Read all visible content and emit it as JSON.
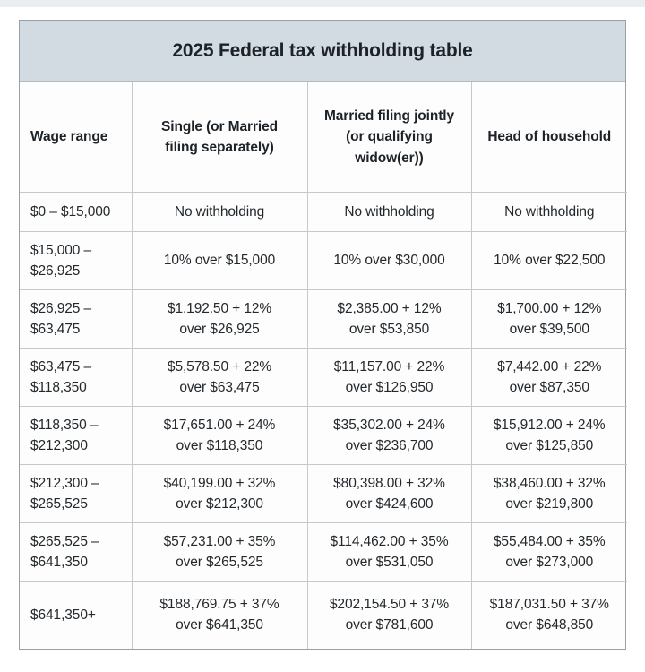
{
  "page": {
    "top_strip_color": "#e9eef2",
    "background_color": "#ffffff"
  },
  "table": {
    "title": "2025 Federal tax withholding table",
    "title_background": "#d2dbe2",
    "border_color": "#c3c9cc",
    "columns": [
      "Wage range",
      "Single (or Married\nfiling separately)",
      "Married filing jointly\n(or qualifying\nwidow(er))",
      "Head of household"
    ],
    "rows": [
      [
        "$0 – $15,000",
        "No withholding",
        "No withholding",
        "No withholding"
      ],
      [
        "$15,000 –\n$26,925",
        "10% over $15,000",
        "10% over $30,000",
        "10% over $22,500"
      ],
      [
        "$26,925 –\n$63,475",
        "$1,192.50 + 12%\nover $26,925",
        "$2,385.00 + 12%\nover $53,850",
        "$1,700.00 + 12%\nover $39,500"
      ],
      [
        "$63,475 –\n$118,350",
        "$5,578.50 + 22%\nover $63,475",
        "$11,157.00 + 22%\nover $126,950",
        "$7,442.00 + 22%\nover $87,350"
      ],
      [
        "$118,350 –\n$212,300",
        "$17,651.00 + 24%\nover $118,350",
        "$35,302.00 + 24%\nover $236,700",
        "$15,912.00 + 24%\nover $125,850"
      ],
      [
        "$212,300 –\n$265,525",
        "$40,199.00 + 32%\nover $212,300",
        "$80,398.00 + 32%\nover $424,600",
        "$38,460.00 + 32%\nover $219,800"
      ],
      [
        "$265,525 –\n$641,350",
        "$57,231.00 + 35%\nover $265,525",
        "$114,462.00 + 35%\nover $531,050",
        "$55,484.00 + 35%\nover $273,000"
      ],
      [
        "$641,350+",
        "$188,769.75 + 37%\nover $641,350",
        "$202,154.50 + 37%\nover $781,600",
        "$187,031.50 + 37%\nover $648,850"
      ]
    ]
  }
}
